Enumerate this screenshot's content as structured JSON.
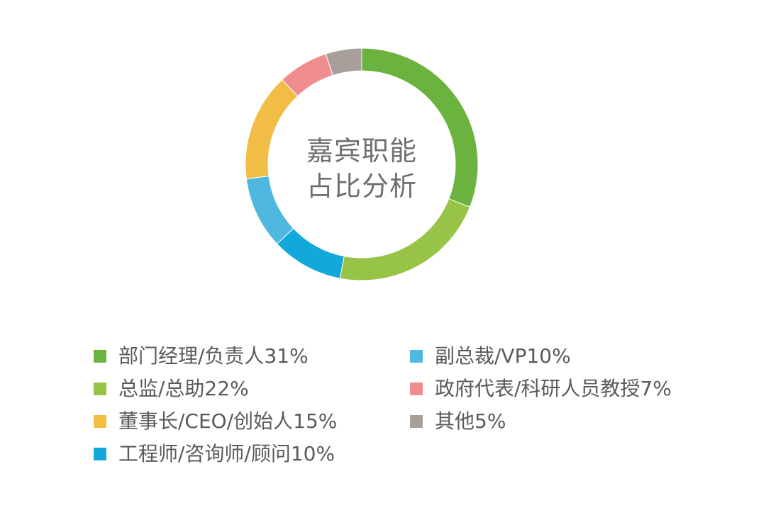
{
  "chart_data": {
    "type": "pie",
    "title_lines": [
      "嘉宾职能",
      "占比分析"
    ],
    "slices": [
      {
        "label": "部门经理/负责人31%",
        "value": 31,
        "color": "#6bb33f"
      },
      {
        "label": "总监/总助22%",
        "value": 22,
        "color": "#97c447"
      },
      {
        "label": "工程师/咨询师/顾问10%",
        "value": 10,
        "color": "#12a8dc"
      },
      {
        "label": "副总裁/VP10%",
        "value": 10,
        "color": "#4eb8df"
      },
      {
        "label": "董事长/CEO/创始人15%",
        "value": 15,
        "color": "#f2bd45"
      },
      {
        "label": "政府代表/科研人员教授7%",
        "value": 7,
        "color": "#f08d8f"
      },
      {
        "label": "其他5%",
        "value": 5,
        "color": "#a89f9a"
      }
    ]
  }
}
